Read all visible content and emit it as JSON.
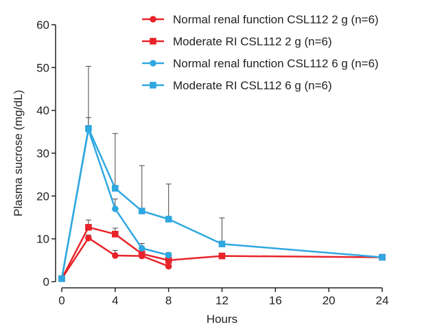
{
  "chart_data": {
    "type": "line",
    "title": "",
    "xlabel": "Hours",
    "ylabel": "Plasma sucrose (mg/dL)",
    "xlim": [
      0,
      24
    ],
    "ylim": [
      0,
      60
    ],
    "x_ticks": [
      0,
      4,
      8,
      12,
      16,
      20,
      24
    ],
    "y_ticks": [
      0,
      10,
      20,
      30,
      40,
      50,
      60
    ],
    "grid": false,
    "legend_position": "top-right",
    "series": [
      {
        "name": "Normal renal function CSL112 2 g (n=6)",
        "color": "#e8232a",
        "marker": "circle",
        "x": [
          0,
          2,
          4,
          6,
          8
        ],
        "y": [
          0.7,
          10.2,
          6.1,
          6.0,
          3.6
        ],
        "error_upper": [
          null,
          10.9,
          7.3,
          null,
          null
        ]
      },
      {
        "name": "Moderate RI CSL112 2 g (n=6)",
        "color": "#e8232a",
        "marker": "square",
        "x": [
          0,
          2,
          4,
          6,
          8,
          12,
          24
        ],
        "y": [
          0.7,
          12.7,
          11.1,
          6.5,
          5.0,
          6.0,
          5.7
        ],
        "error_upper": [
          null,
          14.4,
          12.5,
          7.1,
          5.7,
          null,
          null
        ]
      },
      {
        "name": "Normal renal function CSL112 6 g (n=6)",
        "color": "#2fa7e0",
        "marker": "circle",
        "x": [
          0,
          2,
          4,
          6,
          8
        ],
        "y": [
          0.7,
          35.5,
          17.0,
          7.8,
          6.2
        ],
        "error_upper": [
          null,
          38.3,
          19.3,
          8.9,
          6.8
        ]
      },
      {
        "name": "Moderate RI CSL112 6 g (n=6)",
        "color": "#2fa7e0",
        "marker": "square",
        "x": [
          0,
          2,
          4,
          6,
          8,
          12,
          24
        ],
        "y": [
          0.7,
          35.8,
          21.8,
          16.5,
          14.6,
          8.8,
          5.7
        ],
        "error_upper": [
          null,
          50.3,
          34.6,
          27.1,
          22.8,
          14.9,
          null
        ]
      }
    ]
  }
}
